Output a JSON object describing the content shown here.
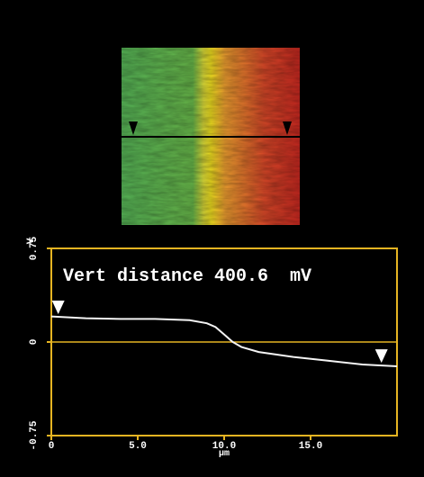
{
  "chart_data": {
    "type": "line",
    "annotation": "Vert distance 400.6  mV",
    "y_unit": "V",
    "x_unit": "µm",
    "x": [
      0,
      2,
      4,
      6,
      8,
      9,
      9.5,
      10,
      10.5,
      11,
      12,
      14,
      16,
      18,
      20
    ],
    "series": [
      {
        "color": "#f4f4f4",
        "values": [
          0.205,
          0.19,
          0.185,
          0.185,
          0.175,
          0.15,
          0.12,
          0.06,
          0.0,
          -0.04,
          -0.08,
          -0.12,
          -0.15,
          -0.18,
          -0.195
        ]
      }
    ],
    "cursors": [
      0.4,
      19.1
    ],
    "xlim": [
      0,
      20
    ],
    "xticks": [
      0,
      {
        "value": 5,
        "label": "5.0"
      },
      {
        "value": 10,
        "label": "10.0"
      },
      {
        "value": 15,
        "label": "15.0"
      }
    ],
    "ylim": [
      -0.75,
      0.75
    ],
    "yticks": [
      -0.75,
      0,
      0.75
    ],
    "frame_color": "#e6b422"
  }
}
